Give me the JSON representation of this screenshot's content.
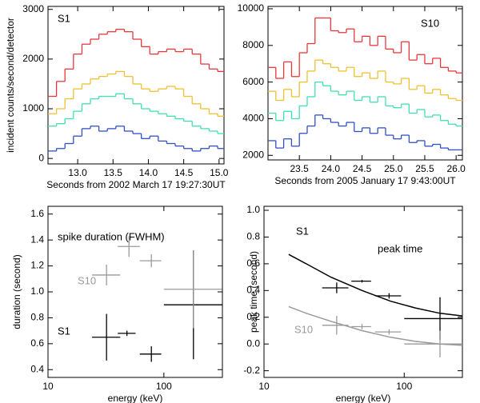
{
  "chart_data": [
    {
      "type": "step",
      "ylabel": "incident counts/second/detector",
      "xlabel": "Seconds from 2002 March 17 19:27:30UT",
      "label": "S1",
      "xlim": [
        12.58,
        15.07
      ],
      "xticks": [
        {
          "value": 13,
          "label": "13.0"
        },
        13.5,
        {
          "value": 14,
          "label": "14.0"
        },
        14.5,
        {
          "value": 15,
          "label": "15.0"
        }
      ],
      "ylim": [
        -110,
        3060
      ],
      "yticks": [
        0,
        1000,
        2000,
        3000
      ],
      "x": [
        12.58,
        12.7,
        12.82,
        12.94,
        13.06,
        13.18,
        13.3,
        13.42,
        13.54,
        13.66,
        13.78,
        13.9,
        14.02,
        14.14,
        14.26,
        14.38,
        14.5,
        14.62,
        14.74,
        14.86,
        14.98
      ],
      "series": [
        {
          "color": "#e8383c",
          "values": [
            1250,
            1550,
            1800,
            2100,
            2300,
            2400,
            2500,
            2550,
            2600,
            2550,
            2400,
            2250,
            2100,
            2150,
            2200,
            2150,
            2200,
            2100,
            1900,
            1800,
            1750
          ]
        },
        {
          "color": "#f0c030",
          "values": [
            900,
            1000,
            1200,
            1400,
            1500,
            1600,
            1650,
            1700,
            1750,
            1650,
            1500,
            1400,
            1350,
            1400,
            1450,
            1400,
            1250,
            1100,
            1000,
            900,
            850
          ]
        },
        {
          "color": "#40e0b0",
          "values": [
            650,
            700,
            800,
            950,
            1100,
            1200,
            1250,
            1250,
            1300,
            1200,
            1100,
            1000,
            950,
            900,
            850,
            800,
            750,
            650,
            600,
            550,
            500
          ]
        },
        {
          "color": "#3050c8",
          "values": [
            150,
            200,
            300,
            450,
            600,
            650,
            550,
            600,
            650,
            550,
            500,
            400,
            450,
            350,
            300,
            250,
            200,
            150,
            200,
            250,
            200
          ]
        }
      ]
    },
    {
      "type": "step",
      "xlabel": "Seconds from 2005 January 17 9:43:00UT",
      "label": "S10",
      "xlim": [
        23.0,
        26.1
      ],
      "xticks": [
        23.5,
        {
          "value": 24,
          "label": "24.0"
        },
        24.5,
        {
          "value": 25,
          "label": "25.0"
        },
        25.5,
        {
          "value": 26,
          "label": "26.0"
        }
      ],
      "ylim": [
        1750,
        10130
      ],
      "yticks": [
        2000,
        4000,
        6000,
        8000,
        10000
      ],
      "x": [
        23.0,
        23.125,
        23.25,
        23.375,
        23.5,
        23.625,
        23.75,
        23.875,
        24.0,
        24.125,
        24.25,
        24.375,
        24.5,
        24.625,
        24.75,
        24.875,
        25.0,
        25.125,
        25.25,
        25.375,
        25.5,
        25.625,
        25.75,
        25.875,
        26.0
      ],
      "series": [
        {
          "color": "#e8383c",
          "values": [
            6800,
            6200,
            7100,
            6300,
            7600,
            8100,
            9500,
            9500,
            8800,
            8700,
            8900,
            8200,
            8500,
            8000,
            8500,
            7800,
            7600,
            8200,
            7200,
            7500,
            7000,
            7300,
            6800,
            6600,
            6500
          ]
        },
        {
          "color": "#f0c030",
          "values": [
            5500,
            5000,
            5600,
            5200,
            6000,
            6600,
            7200,
            7000,
            6800,
            6600,
            6800,
            6300,
            6500,
            6200,
            6600,
            6000,
            5900,
            6200,
            5600,
            5800,
            5400,
            5600,
            5300,
            5100,
            5000
          ]
        },
        {
          "color": "#40e0b0",
          "values": [
            4300,
            3900,
            4400,
            4000,
            4700,
            5200,
            6000,
            5800,
            5500,
            5300,
            5500,
            5000,
            5200,
            4900,
            5200,
            4700,
            4600,
            4800,
            4300,
            4500,
            4100,
            4200,
            3900,
            3700,
            3600
          ]
        },
        {
          "color": "#3050c8",
          "values": [
            2800,
            2400,
            2900,
            2500,
            3200,
            3600,
            4200,
            4000,
            3800,
            3600,
            3800,
            3300,
            3500,
            3200,
            3500,
            3100,
            2900,
            3100,
            2700,
            2800,
            2500,
            2600,
            2400,
            2300,
            2300
          ]
        }
      ]
    },
    {
      "type": "errorbar",
      "ylabel": "duration (second)",
      "xlabel": "energy (keV)",
      "label": "spike duration (FWHM)",
      "xlog": true,
      "xlim": [
        10,
        320
      ],
      "xticks": [
        10,
        100
      ],
      "ylim": [
        0.34,
        1.66
      ],
      "yticks": [
        0.4,
        0.6,
        0.8,
        {
          "value": 1.0,
          "label": "1.0"
        },
        1.2,
        1.4,
        1.6
      ],
      "series": [
        {
          "name": "S1",
          "color": "#000000",
          "x": [
            32,
            48,
            78,
            180
          ],
          "x_low": [
            24,
            40,
            62,
            100
          ],
          "x_high": [
            42,
            57,
            95,
            318
          ],
          "values": [
            0.65,
            0.68,
            0.52,
            0.9
          ],
          "errors": [
            0.18,
            0.02,
            0.06,
            0.42
          ]
        },
        {
          "name": "S10",
          "color": "#9a9a9a",
          "x": [
            32,
            50,
            78,
            180
          ],
          "x_low": [
            24,
            40,
            62,
            100
          ],
          "x_high": [
            42,
            62,
            95,
            318
          ],
          "values": [
            1.13,
            1.35,
            1.24,
            1.02
          ],
          "errors": [
            0.08,
            0.08,
            0.05,
            0.3
          ]
        }
      ]
    },
    {
      "type": "errorbar",
      "ylabel": "peak time (second)",
      "xlabel": "energy (keV)",
      "label": "peak time",
      "xlog": true,
      "xlim": [
        10,
        260
      ],
      "xticks": [
        10,
        100
      ],
      "ylim": [
        -0.25,
        1.03
      ],
      "yticks": [
        -0.2,
        {
          "value": 0,
          "label": "0.0"
        },
        0.2,
        0.4,
        0.6,
        0.8,
        {
          "value": 1.0,
          "label": "1.0"
        }
      ],
      "series": [
        {
          "name": "S1",
          "color": "#000000",
          "x": [
            33,
            50,
            78,
            180
          ],
          "x_low": [
            26,
            42,
            62,
            100
          ],
          "x_high": [
            40,
            58,
            95,
            260
          ],
          "values": [
            0.42,
            0.47,
            0.36,
            0.19
          ],
          "errors": [
            0.04,
            0.01,
            0.02,
            0.16
          ],
          "fit_x": [
            15,
            20,
            30,
            50,
            80,
            120,
            180,
            260
          ],
          "fit_values": [
            0.67,
            0.6,
            0.5,
            0.4,
            0.32,
            0.27,
            0.23,
            0.21
          ]
        },
        {
          "name": "S10",
          "color": "#9a9a9a",
          "x": [
            33,
            50,
            78,
            180
          ],
          "x_low": [
            26,
            42,
            62,
            100
          ],
          "x_high": [
            40,
            58,
            95,
            260
          ],
          "values": [
            0.14,
            0.13,
            0.09,
            0.0
          ],
          "errors": [
            0.07,
            0.02,
            0.02,
            0.1
          ],
          "fit_x": [
            15,
            20,
            30,
            50,
            80,
            120,
            180,
            260
          ],
          "fit_values": [
            0.28,
            0.23,
            0.17,
            0.1,
            0.05,
            0.02,
            0.0,
            -0.01
          ]
        }
      ]
    }
  ]
}
